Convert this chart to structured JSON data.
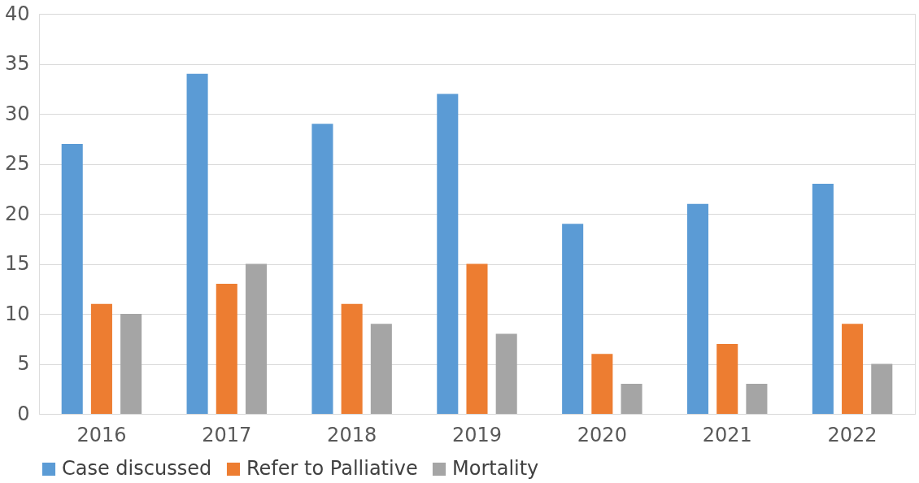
{
  "chart_data": {
    "type": "bar",
    "categories": [
      "2016",
      "2017",
      "2018",
      "2019",
      "2020",
      "2021",
      "2022"
    ],
    "series": [
      {
        "name": "Case discussed",
        "color": "#5b9bd5",
        "values": [
          27,
          34,
          29,
          32,
          19,
          21,
          23
        ]
      },
      {
        "name": "Refer to Palliative",
        "color": "#ed7d31",
        "values": [
          11,
          13,
          11,
          15,
          6,
          7,
          9
        ]
      },
      {
        "name": "Mortality",
        "color": "#a5a5a5",
        "values": [
          10,
          15,
          9,
          8,
          3,
          3,
          5
        ]
      }
    ],
    "ylim": [
      0,
      40
    ],
    "yticks": [
      0,
      5,
      10,
      15,
      20,
      25,
      30,
      35,
      40
    ],
    "grid": "y",
    "legend": "bottom"
  }
}
